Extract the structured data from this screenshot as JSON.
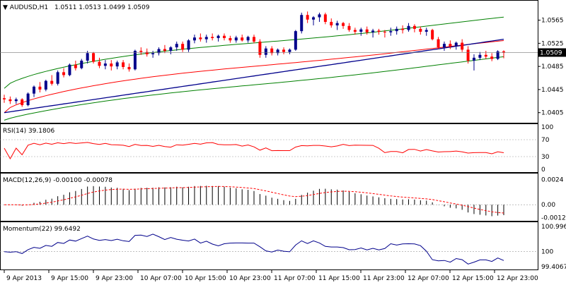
{
  "chart_data": [
    {
      "type": "candlestick",
      "pane": "price",
      "title": "AUDUSD,H1",
      "ohlc_label": "1.0511 1.0513 1.0499 1.0509",
      "ylim": [
        1.039,
        1.0595
      ],
      "yticks": [
        "1.0565",
        "1.0525",
        "1.0485",
        "1.0445",
        "1.0405"
      ],
      "yticks_values": [
        1.0565,
        1.0525,
        1.0485,
        1.0445,
        1.0405
      ],
      "current_price_label": "1.0509",
      "current_price": 1.0509,
      "candles": [
        [
          1.043,
          1.0436,
          1.0422,
          1.0428
        ],
        [
          1.0428,
          1.0433,
          1.042,
          1.0425
        ],
        [
          1.0425,
          1.0431,
          1.042,
          1.0428
        ],
        [
          1.0428,
          1.043,
          1.0415,
          1.0418
        ],
        [
          1.0418,
          1.044,
          1.0416,
          1.0438
        ],
        [
          1.0438,
          1.0452,
          1.0432,
          1.045
        ],
        [
          1.045,
          1.0458,
          1.044,
          1.0445
        ],
        [
          1.0445,
          1.0462,
          1.0442,
          1.046
        ],
        [
          1.046,
          1.047,
          1.0452,
          1.0455
        ],
        [
          1.0455,
          1.0478,
          1.0452,
          1.0475
        ],
        [
          1.0475,
          1.0482,
          1.0466,
          1.047
        ],
        [
          1.047,
          1.049,
          1.0468,
          1.0488
        ],
        [
          1.0488,
          1.0495,
          1.0478,
          1.0482
        ],
        [
          1.0482,
          1.0498,
          1.048,
          1.0495
        ],
        [
          1.0495,
          1.0512,
          1.049,
          1.0508
        ],
        [
          1.0508,
          1.051,
          1.049,
          1.0493
        ],
        [
          1.0493,
          1.05,
          1.0482,
          1.0486
        ],
        [
          1.0486,
          1.0496,
          1.048,
          1.049
        ],
        [
          1.049,
          1.0496,
          1.0478,
          1.0485
        ],
        [
          1.0485,
          1.0495,
          1.048,
          1.0492
        ],
        [
          1.0492,
          1.0496,
          1.048,
          1.0484
        ],
        [
          1.0484,
          1.049,
          1.0476,
          1.048
        ],
        [
          1.048,
          1.0514,
          1.0478,
          1.0512
        ],
        [
          1.0512,
          1.0518,
          1.0505,
          1.051
        ],
        [
          1.051,
          1.0516,
          1.0502,
          1.0506
        ],
        [
          1.0506,
          1.0512,
          1.05,
          1.0508
        ],
        [
          1.0508,
          1.0518,
          1.0504,
          1.0515
        ],
        [
          1.0515,
          1.0522,
          1.0508,
          1.0512
        ],
        [
          1.0512,
          1.052,
          1.0506,
          1.0518
        ],
        [
          1.0518,
          1.0528,
          1.0512,
          1.0524
        ],
        [
          1.0524,
          1.0528,
          1.051,
          1.0514
        ],
        [
          1.0514,
          1.0532,
          1.051,
          1.053
        ],
        [
          1.053,
          1.054,
          1.0525,
          1.0535
        ],
        [
          1.0535,
          1.0542,
          1.0528,
          1.0532
        ],
        [
          1.0532,
          1.054,
          1.0526,
          1.0536
        ],
        [
          1.0536,
          1.0542,
          1.053,
          1.0534
        ],
        [
          1.0534,
          1.054,
          1.0528,
          1.0538
        ],
        [
          1.0538,
          1.0542,
          1.053,
          1.0534
        ],
        [
          1.0534,
          1.0538,
          1.0526,
          1.053
        ],
        [
          1.053,
          1.0538,
          1.0526,
          1.0535
        ],
        [
          1.0535,
          1.054,
          1.0528,
          1.053
        ],
        [
          1.053,
          1.0538,
          1.0526,
          1.0536
        ],
        [
          1.0536,
          1.054,
          1.0525,
          1.0528
        ],
        [
          1.0528,
          1.0532,
          1.05,
          1.0505
        ],
        [
          1.0505,
          1.052,
          1.05,
          1.0516
        ],
        [
          1.0516,
          1.052,
          1.0504,
          1.0508
        ],
        [
          1.0508,
          1.0516,
          1.0504,
          1.0514
        ],
        [
          1.0514,
          1.0518,
          1.0506,
          1.051
        ],
        [
          1.051,
          1.0516,
          1.0506,
          1.0514
        ],
        [
          1.0514,
          1.0548,
          1.0512,
          1.0546
        ],
        [
          1.0546,
          1.0578,
          1.0542,
          1.0574
        ],
        [
          1.0574,
          1.058,
          1.056,
          1.0566
        ],
        [
          1.0566,
          1.0572,
          1.0556,
          1.057
        ],
        [
          1.057,
          1.0578,
          1.0562,
          1.0575
        ],
        [
          1.0575,
          1.0578,
          1.0558,
          1.0562
        ],
        [
          1.0562,
          1.0568,
          1.0552,
          1.0556
        ],
        [
          1.0556,
          1.0564,
          1.0548,
          1.056
        ],
        [
          1.056,
          1.0562,
          1.055,
          1.0555
        ],
        [
          1.0555,
          1.056,
          1.0545,
          1.0548
        ],
        [
          1.0548,
          1.0552,
          1.054,
          1.0545
        ],
        [
          1.0545,
          1.0552,
          1.0538,
          1.0549
        ],
        [
          1.0549,
          1.0554,
          1.054,
          1.0544
        ],
        [
          1.0544,
          1.055,
          1.0535,
          1.0547
        ],
        [
          1.0547,
          1.055,
          1.054,
          1.0545
        ],
        [
          1.0545,
          1.0548,
          1.0535,
          1.0544
        ],
        [
          1.0544,
          1.0552,
          1.0538,
          1.0546
        ],
        [
          1.0546,
          1.0554,
          1.054,
          1.055
        ],
        [
          1.055,
          1.0556,
          1.0542,
          1.0548
        ],
        [
          1.0548,
          1.056,
          1.0545,
          1.0555
        ],
        [
          1.0555,
          1.0558,
          1.0544,
          1.055
        ],
        [
          1.055,
          1.0554,
          1.054,
          1.0545
        ],
        [
          1.0545,
          1.0552,
          1.0538,
          1.0548
        ],
        [
          1.0548,
          1.055,
          1.053,
          1.0532
        ],
        [
          1.0532,
          1.0536,
          1.0515,
          1.0518
        ],
        [
          1.0518,
          1.0528,
          1.0512,
          1.0524
        ],
        [
          1.0524,
          1.053,
          1.0515,
          1.052
        ],
        [
          1.052,
          1.0528,
          1.0514,
          1.0526
        ],
        [
          1.0526,
          1.0532,
          1.051,
          1.0514
        ],
        [
          1.0514,
          1.052,
          1.049,
          1.0495
        ],
        [
          1.0495,
          1.0506,
          1.0478,
          1.05
        ],
        [
          1.05,
          1.051,
          1.0496,
          1.0505
        ],
        [
          1.0505,
          1.0512,
          1.0498,
          1.0502
        ],
        [
          1.0502,
          1.0508,
          1.0494,
          1.0498
        ],
        [
          1.0498,
          1.0513,
          1.0496,
          1.0511
        ],
        [
          1.0511,
          1.0513,
          1.0499,
          1.0509
        ]
      ],
      "ma_red_start": 1.0405,
      "ma_red_end": 1.0528,
      "ma_blue_start": 1.0405,
      "ma_blue_end": 1.0532,
      "bollinger_upper_start": 1.0447,
      "bollinger_upper_end": 1.0568,
      "bollinger_lower_start": 1.0392,
      "bollinger_lower_end": 1.05
    },
    {
      "type": "line",
      "pane": "rsi",
      "title": "RSI(14) 39.1806",
      "ylim": [
        0,
        100
      ],
      "yticks": [
        "100",
        "70",
        "30",
        "0"
      ],
      "yticks_values": [
        100,
        70,
        30,
        0
      ],
      "levels": [
        70,
        30
      ],
      "color": "#ff0000"
    },
    {
      "type": "bar",
      "pane": "macd",
      "title": "MACD(12,26,9) -0.00100 -0.00078",
      "ylim": [
        -0.0014,
        0.0027
      ],
      "yticks": [
        "0.0024",
        "0.00",
        "-0.00123"
      ],
      "yticks_values": [
        0.0024,
        0.0,
        -0.00123
      ],
      "signal_color": "#ff0000"
    },
    {
      "type": "line",
      "pane": "momentum",
      "title": "Momentum(22) 99.6492",
      "ylim": [
        99.35,
        101.05
      ],
      "yticks": [
        "100.9962",
        "100",
        "99.4067"
      ],
      "yticks_values": [
        100.9962,
        100,
        99.4067
      ],
      "level": 100,
      "color": "#00008b"
    }
  ],
  "xaxis": {
    "labels": [
      "9 Apr 2013",
      "9 Apr 15:00",
      "9 Apr 23:00",
      "10 Apr 07:00",
      "10 Apr 15:00",
      "10 Apr 23:00",
      "11 Apr 07:00",
      "11 Apr 15:00",
      "11 Apr 23:00",
      "12 Apr 07:00",
      "12 Apr 15:00",
      "12 Apr 23:00"
    ]
  },
  "colors": {
    "bull": "#00008b",
    "bear": "#ff0000",
    "ma_fast": "#ff0000",
    "ma_slow": "#00008b",
    "bollinger": "#008000",
    "price_tag": "#000000"
  }
}
